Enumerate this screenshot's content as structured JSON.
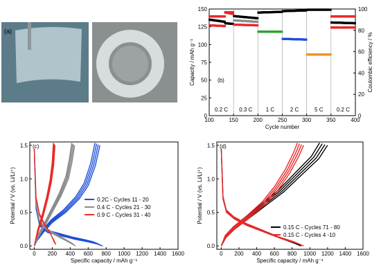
{
  "photos": {
    "label": "(a)"
  },
  "chart_data": [
    {
      "panel": "(b)",
      "type": "scatter",
      "xlabel": "Cycle number",
      "ylabel": "Capacity / mAh g⁻¹",
      "y2label": "Coulombic efficiency / %",
      "xlim": [
        100,
        400
      ],
      "ylim": [
        0,
        150
      ],
      "y2lim": [
        0,
        100
      ],
      "xticks": [
        100,
        150,
        200,
        250,
        300,
        350,
        400
      ],
      "yticks": [
        0,
        25,
        50,
        75,
        100,
        125,
        150
      ],
      "y2ticks": [
        0,
        20,
        40,
        60,
        80,
        100
      ],
      "regions": [
        {
          "label": "0.2 C",
          "x": [
            100,
            150
          ]
        },
        {
          "label": "0.3 C",
          "x": [
            150,
            200
          ]
        },
        {
          "label": "1 C",
          "x": [
            200,
            250
          ]
        },
        {
          "label": "2 C",
          "x": [
            250,
            300
          ]
        },
        {
          "label": "5 C",
          "x": [
            300,
            350
          ]
        },
        {
          "label": "0.2 C",
          "x": [
            350,
            400
          ]
        }
      ],
      "series": [
        {
          "color": "#000000",
          "axis": "y",
          "segments": [
            {
              "x": [
                101,
                132
              ],
              "y": [
                135,
                132
              ]
            },
            {
              "x": [
                133,
                149
              ],
              "y": [
                130,
                129
              ]
            },
            {
              "x": [
                151,
                199
              ],
              "y": [
                140,
                137
              ]
            },
            {
              "x": [
                201,
                249
              ],
              "y": [
                145,
                146
              ]
            },
            {
              "x": [
                251,
                299
              ],
              "y": [
                147,
                148
              ]
            },
            {
              "x": [
                301,
                349
              ],
              "y": [
                149,
                149
              ]
            },
            {
              "x": [
                351,
                399
              ],
              "y": [
                131,
                130
              ]
            }
          ]
        },
        {
          "color": "#e8292a",
          "axis": "y",
          "segments": [
            {
              "x": [
                101,
                132
              ],
              "y": [
                127,
                126
              ]
            },
            {
              "x": [
                133,
                149
              ],
              "y": [
                145,
                143
              ]
            },
            {
              "x": [
                151,
                199
              ],
              "y": [
                128,
                127
              ]
            },
            {
              "x": [
                351,
                399
              ],
              "y": [
                124,
                124
              ]
            }
          ]
        },
        {
          "color": "#e8292a",
          "axis": "y2",
          "segments": [
            {
              "x": [
                101,
                132
              ],
              "y": [
                93,
                93
              ]
            },
            {
              "x": [
                133,
                149
              ],
              "y": [
                97,
                97
              ]
            },
            {
              "x": [
                351,
                399
              ],
              "y": [
                93,
                93
              ]
            }
          ]
        },
        {
          "color": "#8c8c8c",
          "axis": "y",
          "segments": [
            {
              "x": [
                151,
                199
              ],
              "y": [
                134,
                132
              ]
            }
          ]
        },
        {
          "color": "#2ea02e",
          "axis": "y",
          "segments": [
            {
              "x": [
                201,
                249
              ],
              "y": [
                118,
                118
              ]
            }
          ]
        },
        {
          "color": "#1f4fd8",
          "axis": "y",
          "segments": [
            {
              "x": [
                251,
                299
              ],
              "y": [
                108,
                107
              ]
            }
          ]
        },
        {
          "color": "#f5901e",
          "axis": "y",
          "segments": [
            {
              "x": [
                301,
                349
              ],
              "y": [
                86,
                86
              ]
            }
          ]
        }
      ]
    },
    {
      "panel": "(c)",
      "type": "line",
      "xlabel": "Specific capacity / mAh g⁻¹",
      "ylabel": "Potential / V (vs. Li/Li⁺)",
      "xlim": [
        -50,
        1600
      ],
      "ylim": [
        -0.05,
        1.55
      ],
      "xticks": [
        0,
        200,
        400,
        600,
        800,
        1000,
        1200,
        1400,
        1600
      ],
      "yticks": [
        0.0,
        0.5,
        1.0,
        1.5
      ],
      "legend": {
        "position": "right"
      },
      "series": [
        {
          "name": "0.2C - Cycles 11 - 20",
          "color": "#1f4fd8",
          "curves": [
            {
              "x": [
                0,
                20,
                60,
                150,
                300,
                450,
                600,
                700,
                760
              ],
              "y": [
                1.45,
                0.55,
                0.3,
                0.2,
                0.15,
                0.1,
                0.06,
                0.03,
                0.0
              ]
            },
            {
              "x": [
                0,
                30,
                100,
                200,
                350,
                500,
                600,
                680,
                730
              ],
              "y": [
                0.0,
                0.08,
                0.2,
                0.35,
                0.5,
                0.7,
                0.9,
                1.2,
                1.5
              ]
            }
          ]
        },
        {
          "name": "0.4 C - Cycles 21 - 30",
          "color": "#8c8c8c",
          "curves": [
            {
              "x": [
                0,
                20,
                60,
                150,
                250,
                350,
                420,
                460
              ],
              "y": [
                1.45,
                0.6,
                0.35,
                0.22,
                0.15,
                0.08,
                0.03,
                0.0
              ]
            },
            {
              "x": [
                0,
                40,
                120,
                200,
                300,
                380,
                420,
                450
              ],
              "y": [
                0.0,
                0.12,
                0.3,
                0.5,
                0.75,
                1.0,
                1.25,
                1.5
              ]
            }
          ]
        },
        {
          "name": "0.9 C - Cycles 31 - 40",
          "color": "#e8292a",
          "curves": [
            {
              "x": [
                0,
                20,
                60,
                120,
                180,
                220,
                240
              ],
              "y": [
                1.45,
                0.7,
                0.45,
                0.3,
                0.18,
                0.08,
                0.02
              ]
            },
            {
              "x": [
                0,
                40,
                100,
                150,
                190,
                215,
                230
              ],
              "y": [
                0.0,
                0.2,
                0.45,
                0.7,
                0.95,
                1.2,
                1.5
              ]
            }
          ]
        }
      ]
    },
    {
      "panel": "(d)",
      "type": "line",
      "xlabel": "Specific capacity / mAh g⁻¹",
      "ylabel": "Potential / V (vs. Li/Li⁺)",
      "xlim": [
        -50,
        1600
      ],
      "ylim": [
        -0.05,
        1.55
      ],
      "xticks": [
        0,
        200,
        400,
        600,
        800,
        1000,
        1200,
        1400,
        1600
      ],
      "yticks": [
        0.0,
        0.5,
        1.0,
        1.5
      ],
      "legend": {
        "position": "bottom-right"
      },
      "series": [
        {
          "name": "0.15 C - Cycles 71 - 80",
          "color": "#000000",
          "curves": [
            {
              "x": [
                0,
                20,
                60,
                150,
                300,
                500,
                700,
                850,
                900
              ],
              "y": [
                1.45,
                0.7,
                0.5,
                0.4,
                0.3,
                0.2,
                0.1,
                0.03,
                0.0
              ]
            },
            {
              "x": [
                0,
                50,
                150,
                300,
                500,
                700,
                900,
                1100,
                1200
              ],
              "y": [
                0.0,
                0.12,
                0.25,
                0.4,
                0.6,
                0.8,
                1.05,
                1.3,
                1.5
              ]
            }
          ]
        },
        {
          "name": "0.15 C - Cycles 4 -10",
          "color": "#e8292a",
          "curves": [
            {
              "x": [
                0,
                20,
                60,
                150,
                300,
                500,
                700,
                880,
                930
              ],
              "y": [
                1.45,
                0.7,
                0.5,
                0.4,
                0.3,
                0.2,
                0.1,
                0.03,
                0.0
              ]
            },
            {
              "x": [
                0,
                50,
                150,
                300,
                500,
                650,
                780,
                880,
                930
              ],
              "y": [
                0.0,
                0.12,
                0.25,
                0.4,
                0.62,
                0.85,
                1.1,
                1.35,
                1.5
              ]
            }
          ]
        }
      ]
    }
  ]
}
